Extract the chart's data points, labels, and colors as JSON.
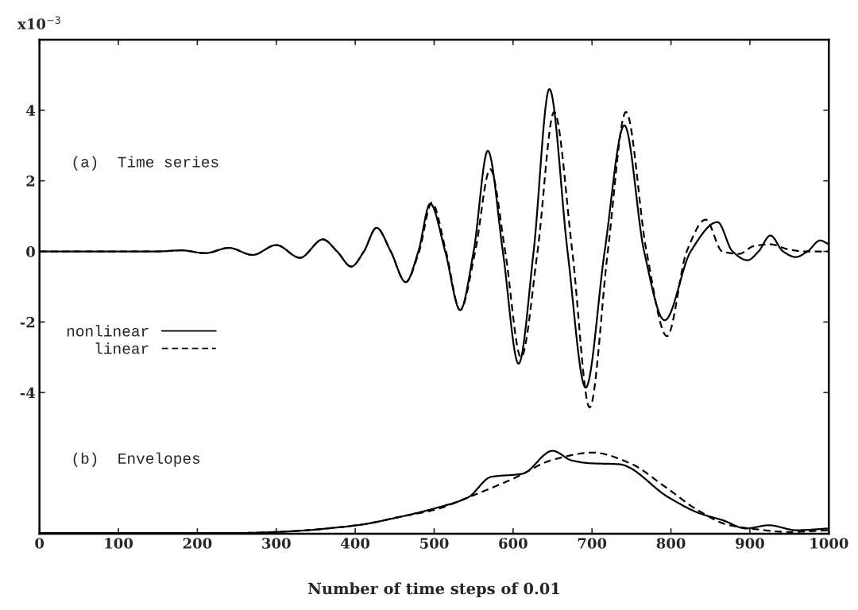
{
  "chart_data": {
    "type": "line",
    "xlabel": "Number of time steps of 0.01",
    "ylabel": "x10$^{−3}$",
    "annotations": [
      "(a)  Time series",
      "(b)  Envelopes"
    ],
    "xlim": [
      0,
      1000
    ],
    "xticks": [
      0,
      100,
      200,
      300,
      400,
      500,
      600,
      700,
      800,
      900,
      1000
    ],
    "ylim": [
      -8,
      6
    ],
    "yticks": [
      -4,
      -2,
      0,
      2,
      4
    ],
    "grid": false,
    "legend": "center left",
    "series": [
      {
        "name": "nonlinear",
        "color": "#000000",
        "line_style": "solid",
        "x": [
          0,
          150,
          180,
          210,
          240,
          270,
          300,
          330,
          359,
          377,
          395,
          411,
          427,
          445,
          464,
          480,
          495,
          514,
          533,
          550,
          568,
          587,
          607,
          626,
          646,
          669,
          692,
          716,
          741,
          766,
          792,
          825,
          859,
          878,
          897,
          911,
          926,
          942,
          958,
          973,
          989,
          1000
        ],
        "values": [
          0,
          0,
          0.03,
          -0.05,
          0.1,
          -0.1,
          0.18,
          -0.18,
          0.34,
          0,
          -0.43,
          0,
          0.67,
          0,
          -0.87,
          0,
          1.35,
          0,
          -1.66,
          0,
          2.85,
          0,
          -3.18,
          0,
          4.6,
          0,
          -3.86,
          0,
          3.57,
          0,
          -1.95,
          0,
          0.83,
          0,
          -0.25,
          0,
          0.45,
          0,
          -0.16,
          0,
          0.31,
          0.2
        ]
      },
      {
        "name": "linear",
        "color": "#000000",
        "line_style": "dashed",
        "x": [
          0,
          150,
          180,
          210,
          240,
          270,
          300,
          330,
          359,
          377,
          395,
          411,
          427,
          445,
          464,
          481,
          497,
          515,
          533,
          552,
          571,
          590,
          610,
          631,
          652,
          675,
          697,
          720,
          743,
          769,
          795,
          820,
          844,
          865,
          886,
          905,
          926,
          950,
          970,
          1000
        ],
        "values": [
          0,
          0,
          0.03,
          -0.05,
          0.1,
          -0.1,
          0.18,
          -0.18,
          0.34,
          0,
          -0.43,
          0,
          0.67,
          0,
          -0.87,
          0,
          1.38,
          0,
          -1.66,
          0,
          2.33,
          0,
          -3.0,
          0,
          3.95,
          0,
          -4.42,
          0,
          3.95,
          0,
          -2.4,
          0,
          0.9,
          0,
          -0.07,
          0.15,
          0.2,
          0.05,
          0.0,
          0.0
        ]
      },
      {
        "color": "#000000",
        "line_style": "solid",
        "x": [
          0,
          250,
          301,
          402,
          455,
          504,
          543,
          572,
          612,
          650,
          674,
          696,
          734,
          797,
          836,
          866,
          895,
          924,
          959,
          1000
        ],
        "values": [
          -7.98,
          -7.98,
          -7.95,
          -7.76,
          -7.53,
          -7.26,
          -6.97,
          -6.39,
          -6.3,
          -5.65,
          -5.92,
          -6.0,
          -6.03,
          -6.97,
          -7.42,
          -7.62,
          -7.85,
          -7.76,
          -7.9,
          -7.85
        ]
      },
      {
        "color": "#000000",
        "line_style": "dashed",
        "x": [
          0,
          250,
          301,
          402,
          455,
          504,
          543,
          601,
          651,
          701,
          748,
          792,
          836,
          871,
          900,
          950,
          1000
        ],
        "values": [
          -7.98,
          -7.98,
          -7.95,
          -7.76,
          -7.53,
          -7.3,
          -6.97,
          -6.43,
          -5.9,
          -5.7,
          -6.0,
          -6.66,
          -7.36,
          -7.74,
          -7.85,
          -7.95,
          -7.9
        ]
      }
    ]
  }
}
